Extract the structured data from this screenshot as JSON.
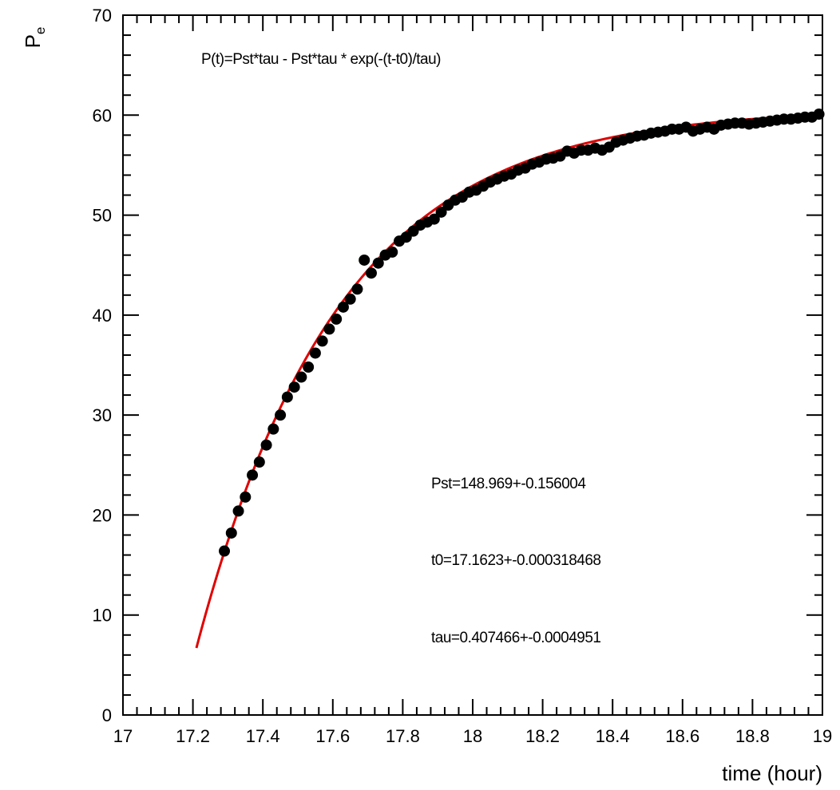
{
  "chart_data": {
    "type": "scatter",
    "title": "",
    "xlabel": "time (hour)",
    "ylabel": "P",
    "ylabel_subscript": "e",
    "xlim": [
      17,
      19
    ],
    "ylim": [
      0,
      70
    ],
    "x_ticks": [
      "17",
      "17.2",
      "17.4",
      "17.6",
      "17.8",
      "18",
      "18.2",
      "18.4",
      "18.6",
      "18.8",
      "19"
    ],
    "y_ticks": [
      "0",
      "10",
      "20",
      "30",
      "40",
      "50",
      "60",
      "70"
    ],
    "grid": false,
    "colors": {
      "points": "#000000",
      "fit": "#e00000",
      "frame": "#000000"
    },
    "annotations": {
      "formula": "P(t)=Pst*tau - Pst*tau * exp(-(t-t0)/tau)",
      "pst": "Pst=148.969+-0.156004",
      "t0": "t0=17.1623+-0.000318468",
      "tau": "tau=0.407466+-0.0004951"
    },
    "fit": {
      "Pst": 148.969,
      "t0": 17.1623,
      "tau": 0.407466,
      "x_range": [
        17.21,
        18.99
      ]
    },
    "series": [
      {
        "points": [
          [
            17.29,
            16.4
          ],
          [
            17.31,
            18.2
          ],
          [
            17.33,
            20.4
          ],
          [
            17.35,
            21.8
          ],
          [
            17.37,
            24.0
          ],
          [
            17.39,
            25.3
          ],
          [
            17.41,
            27.0
          ],
          [
            17.43,
            28.6
          ],
          [
            17.45,
            30.0
          ],
          [
            17.47,
            31.8
          ],
          [
            17.49,
            32.8
          ],
          [
            17.51,
            33.8
          ],
          [
            17.53,
            34.8
          ],
          [
            17.55,
            36.2
          ],
          [
            17.57,
            37.4
          ],
          [
            17.59,
            38.6
          ],
          [
            17.61,
            39.6
          ],
          [
            17.63,
            40.8
          ],
          [
            17.65,
            41.6
          ],
          [
            17.67,
            42.6
          ],
          [
            17.69,
            45.5
          ],
          [
            17.71,
            44.2
          ],
          [
            17.73,
            45.2
          ],
          [
            17.75,
            46.0
          ],
          [
            17.77,
            46.3
          ],
          [
            17.79,
            47.4
          ],
          [
            17.81,
            47.8
          ],
          [
            17.83,
            48.4
          ],
          [
            17.85,
            49.0
          ],
          [
            17.87,
            49.3
          ],
          [
            17.89,
            49.6
          ],
          [
            17.91,
            50.3
          ],
          [
            17.93,
            51.0
          ],
          [
            17.95,
            51.5
          ],
          [
            17.97,
            51.8
          ],
          [
            17.99,
            52.3
          ],
          [
            18.01,
            52.5
          ],
          [
            18.03,
            52.9
          ],
          [
            18.05,
            53.3
          ],
          [
            18.07,
            53.6
          ],
          [
            18.09,
            53.9
          ],
          [
            18.11,
            54.1
          ],
          [
            18.13,
            54.5
          ],
          [
            18.15,
            54.7
          ],
          [
            18.17,
            55.1
          ],
          [
            18.19,
            55.3
          ],
          [
            18.21,
            55.6
          ],
          [
            18.23,
            55.7
          ],
          [
            18.25,
            55.9
          ],
          [
            18.27,
            56.4
          ],
          [
            18.29,
            56.2
          ],
          [
            18.31,
            56.5
          ],
          [
            18.33,
            56.5
          ],
          [
            18.35,
            56.7
          ],
          [
            18.37,
            56.5
          ],
          [
            18.39,
            56.8
          ],
          [
            18.41,
            57.3
          ],
          [
            18.43,
            57.5
          ],
          [
            18.45,
            57.7
          ],
          [
            18.47,
            57.9
          ],
          [
            18.49,
            58.0
          ],
          [
            18.51,
            58.2
          ],
          [
            18.53,
            58.3
          ],
          [
            18.55,
            58.4
          ],
          [
            18.57,
            58.6
          ],
          [
            18.59,
            58.6
          ],
          [
            18.61,
            58.8
          ],
          [
            18.63,
            58.4
          ],
          [
            18.65,
            58.6
          ],
          [
            18.67,
            58.8
          ],
          [
            18.69,
            58.6
          ],
          [
            18.71,
            59.0
          ],
          [
            18.73,
            59.1
          ],
          [
            18.75,
            59.2
          ],
          [
            18.77,
            59.2
          ],
          [
            18.79,
            59.1
          ],
          [
            18.81,
            59.2
          ],
          [
            18.83,
            59.3
          ],
          [
            18.85,
            59.4
          ],
          [
            18.87,
            59.5
          ],
          [
            18.89,
            59.6
          ],
          [
            18.91,
            59.6
          ],
          [
            18.93,
            59.7
          ],
          [
            18.95,
            59.8
          ],
          [
            18.97,
            59.8
          ],
          [
            18.99,
            60.1
          ]
        ]
      }
    ]
  }
}
